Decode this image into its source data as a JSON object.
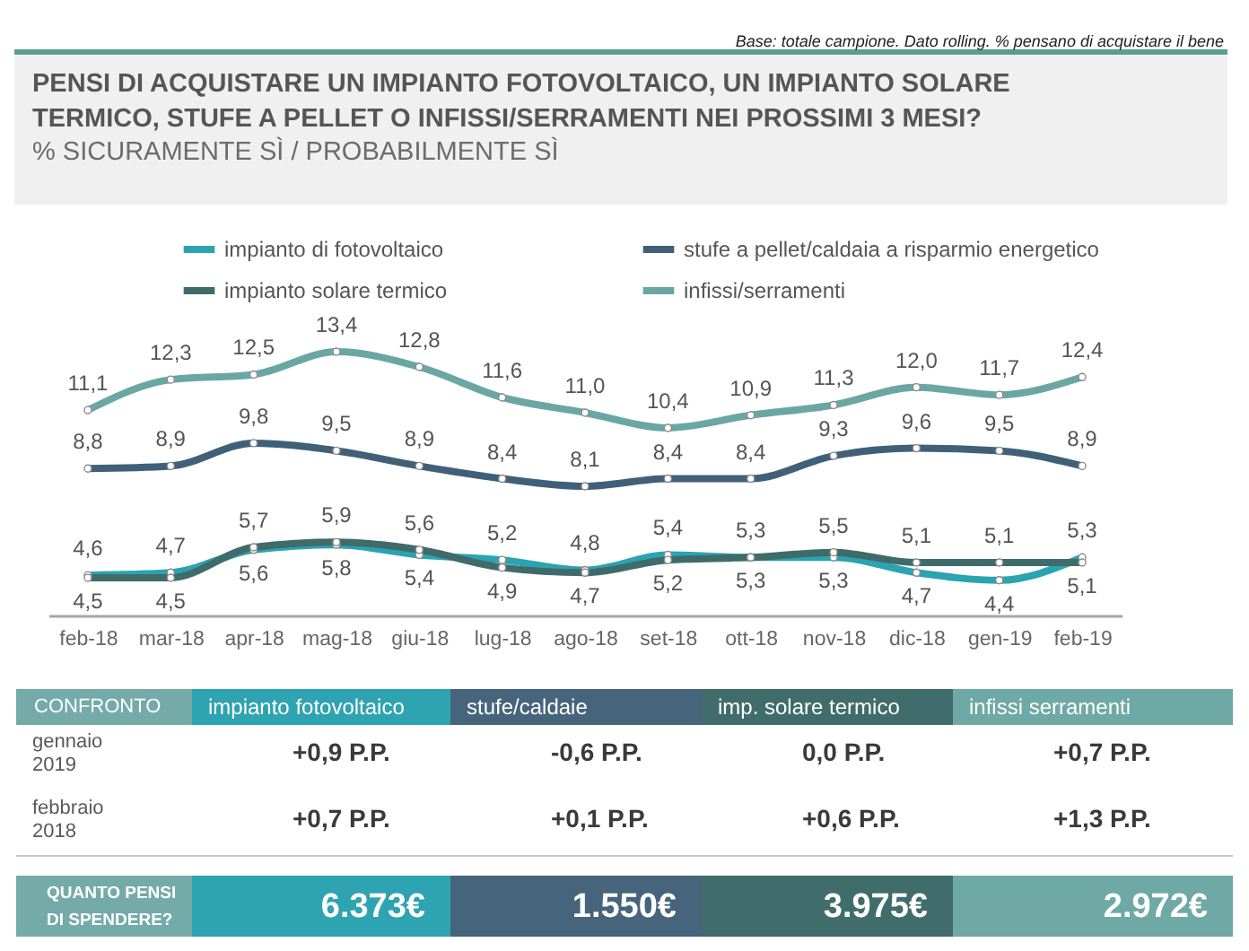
{
  "chart_data": [
    {
      "type": "line",
      "title": "PENSI DI ACQUISTARE UN IMPIANTO FOTOVOLTAICO, UN IMPIANTO SOLARE TERMICO,  STUFE A PELLET O INFISSI/SERRAMENTI NEI PROSSIMI 3 MESI?",
      "subtitle": "% SICURAMENTE SÌ / PROBABILMENTE SÌ",
      "annotations": [
        "Base: totale campione. Dato rolling. % pensano di acquistare il bene"
      ],
      "categories": [
        "feb-18",
        "mar-18",
        "apr-18",
        "mag-18",
        "giu-18",
        "lug-18",
        "ago-18",
        "set-18",
        "ott-18",
        "nov-18",
        "dic-18",
        "gen-19",
        "feb-19"
      ],
      "series": [
        {
          "name": "impianto di fotovoltaico",
          "color": "#2ba3b0",
          "values": [
            4.6,
            4.7,
            5.6,
            5.8,
            5.4,
            5.2,
            4.8,
            5.4,
            5.3,
            5.3,
            4.7,
            4.4,
            5.3
          ],
          "value_labels": [
            "4,6",
            "4,7",
            "5,6",
            "5,8",
            "5,4",
            "5,2",
            "4,8",
            "5,4",
            "5,3",
            "5,3",
            "4,7",
            "4,4",
            "5,3"
          ]
        },
        {
          "name": "stufe a pellet/caldaia a risparmio energetico",
          "color": "#40607a",
          "values": [
            8.8,
            8.9,
            9.8,
            9.5,
            8.9,
            8.4,
            8.1,
            8.4,
            8.4,
            9.3,
            9.6,
            9.5,
            8.9
          ],
          "value_labels": [
            "8,8",
            "8,9",
            "9,8",
            "9,5",
            "8,9",
            "8,4",
            "8,1",
            "8,4",
            "8,4",
            "9,3",
            "9,6",
            "9,5",
            "8,9"
          ]
        },
        {
          "name": "impianto solare termico",
          "color": "#3f6b6b",
          "values": [
            4.5,
            4.5,
            5.7,
            5.9,
            5.6,
            4.9,
            4.7,
            5.2,
            5.3,
            5.5,
            5.1,
            5.1,
            5.1
          ],
          "value_labels": [
            "4,5",
            "4,5",
            "5,7",
            "5,9",
            "5,6",
            "4,9",
            "4,7",
            "5,2",
            "5,3",
            "5,5",
            "5,1",
            "5,1",
            "5,1"
          ]
        },
        {
          "name": "infissi/serramenti",
          "color": "#6aa7a4",
          "values": [
            11.1,
            12.3,
            12.5,
            13.4,
            12.8,
            11.6,
            11.0,
            10.4,
            10.9,
            11.3,
            12.0,
            11.7,
            12.4
          ],
          "value_labels": [
            "11,1",
            "12,3",
            "12,5",
            "13,4",
            "12,8",
            "11,6",
            "11,0",
            "10,4",
            "10,9",
            "11,3",
            "12,0",
            "11,7",
            "12,4"
          ]
        }
      ],
      "tick_labels": "x",
      "legend": "top",
      "marker": "circle",
      "line_style": "solid"
    },
    {
      "type": "other",
      "annotations": [
        "CONFRONTO",
        "impianto fotovoltaico",
        "stufe/caldaie",
        "imp. solare termico",
        "infissi serramenti",
        "gennaio 2019",
        "+0,9 P.P.",
        "-0,6 P.P.",
        "0,0 P.P.",
        "+0,7 P.P.",
        "febbraio 2018",
        "+0,7 P.P.",
        "+0,1 P.P.",
        "+0,6 P.P.",
        "+1,3 P.P.",
        "QUANTO PENSI DI SPENDERE?",
        "6.373€",
        "1.550€",
        "3.975€",
        "2.972€"
      ]
    }
  ]
}
